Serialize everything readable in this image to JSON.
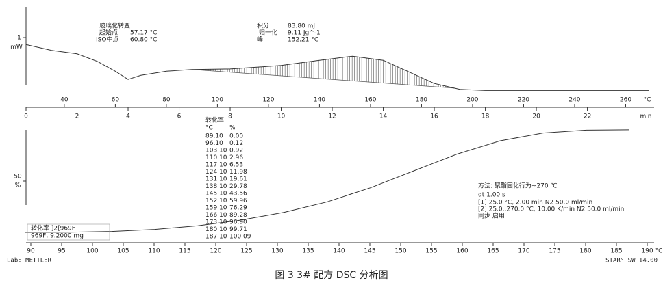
{
  "chart_data": [
    {
      "type": "line",
      "color": "#333333",
      "annotations": [
        "玻璃化转变",
        "起始点",
        "57.17 °C",
        "ISO中点",
        "60.80 °C",
        "积分",
        "83.80 mJ",
        "归一化",
        "9.11 Jg^-1",
        "峰",
        "152.21 °C"
      ],
      "x": [
        0,
        1,
        2,
        2.8,
        3.5,
        4,
        4.5,
        5.5,
        6.5,
        8,
        10,
        11.5,
        12.8,
        14,
        15,
        16,
        17,
        18,
        20,
        22,
        24.4
      ],
      "values": [
        0.88,
        0.78,
        0.72,
        0.59,
        0.42,
        0.28,
        0.35,
        0.42,
        0.45,
        0.46,
        0.52,
        0.61,
        0.68,
        0.61,
        0.41,
        0.21,
        0.11,
        0.09,
        0.09,
        0.09,
        0.09
      ],
      "xlim": [
        0,
        24.4
      ],
      "xticks": [
        0,
        2,
        4,
        6,
        8,
        10,
        12,
        14,
        16,
        18,
        20,
        22
      ],
      "xlabel": "min",
      "x2lim": [
        25,
        269
      ],
      "x2ticks": [
        40,
        60,
        80,
        100,
        120,
        140,
        160,
        180,
        200,
        220,
        240,
        260
      ],
      "x2label": "°C",
      "ylim": [
        0,
        1.53
      ],
      "yticks": [
        1
      ],
      "ylabel": "mW"
    },
    {
      "type": "line",
      "color": "#333333",
      "table_header": [
        "转化率",
        "°C",
        "%"
      ],
      "x": [
        89.1,
        96.1,
        103.1,
        110.1,
        117.1,
        124.1,
        131.1,
        138.1,
        145.1,
        152.1,
        159.1,
        166.1,
        173.1,
        180.1,
        187.1
      ],
      "x_labels": [
        "89.10",
        "96.10",
        "103.10",
        "110.10",
        "117.10",
        "124.10",
        "131.10",
        "138.10",
        "145.10",
        "152.10",
        "159.10",
        "166.10",
        "173.10",
        "180.10",
        "187.10"
      ],
      "values": [
        0,
        0.12,
        0.92,
        2.96,
        6.53,
        11.98,
        19.61,
        29.78,
        43.56,
        59.96,
        76.29,
        89.28,
        96.9,
        99.71,
        100.09
      ],
      "value_labels": [
        "0.00",
        "0.12",
        "0.92",
        "2.96",
        "6.53",
        "11.98",
        "19.61",
        "29.78",
        "43.56",
        "59.96",
        "76.29",
        "89.28",
        "96.90",
        "99.71",
        "100.09"
      ],
      "xlim": [
        90,
        190
      ],
      "xticks": [
        90,
        95,
        100,
        105,
        110,
        115,
        120,
        125,
        130,
        135,
        140,
        145,
        150,
        155,
        160,
        165,
        170,
        175,
        180,
        185,
        190
      ],
      "xlabel": "°C",
      "ylim": [
        0,
        100
      ],
      "yticks": [
        50
      ],
      "ylabel": "%",
      "legend_lines": [
        "转化率 ]2[969F",
        "969F, 9.2000 mg"
      ],
      "method_lines": [
        "方法: 聚酯固化行为~270 ℃",
        "dt 1.00 s",
        "[1] 25.0 °C, 2.00 min   N2 50.0 ml/min",
        "[2] 25.0..270.0 °C, 10.00 K/min   N2 50.0 ml/min",
        "同步 启用"
      ]
    }
  ],
  "footer": {
    "lab": "Lab: METTLER",
    "software": "STAR° SW 14.00"
  },
  "caption": "图 3  3# 配方 DSC 分析图"
}
